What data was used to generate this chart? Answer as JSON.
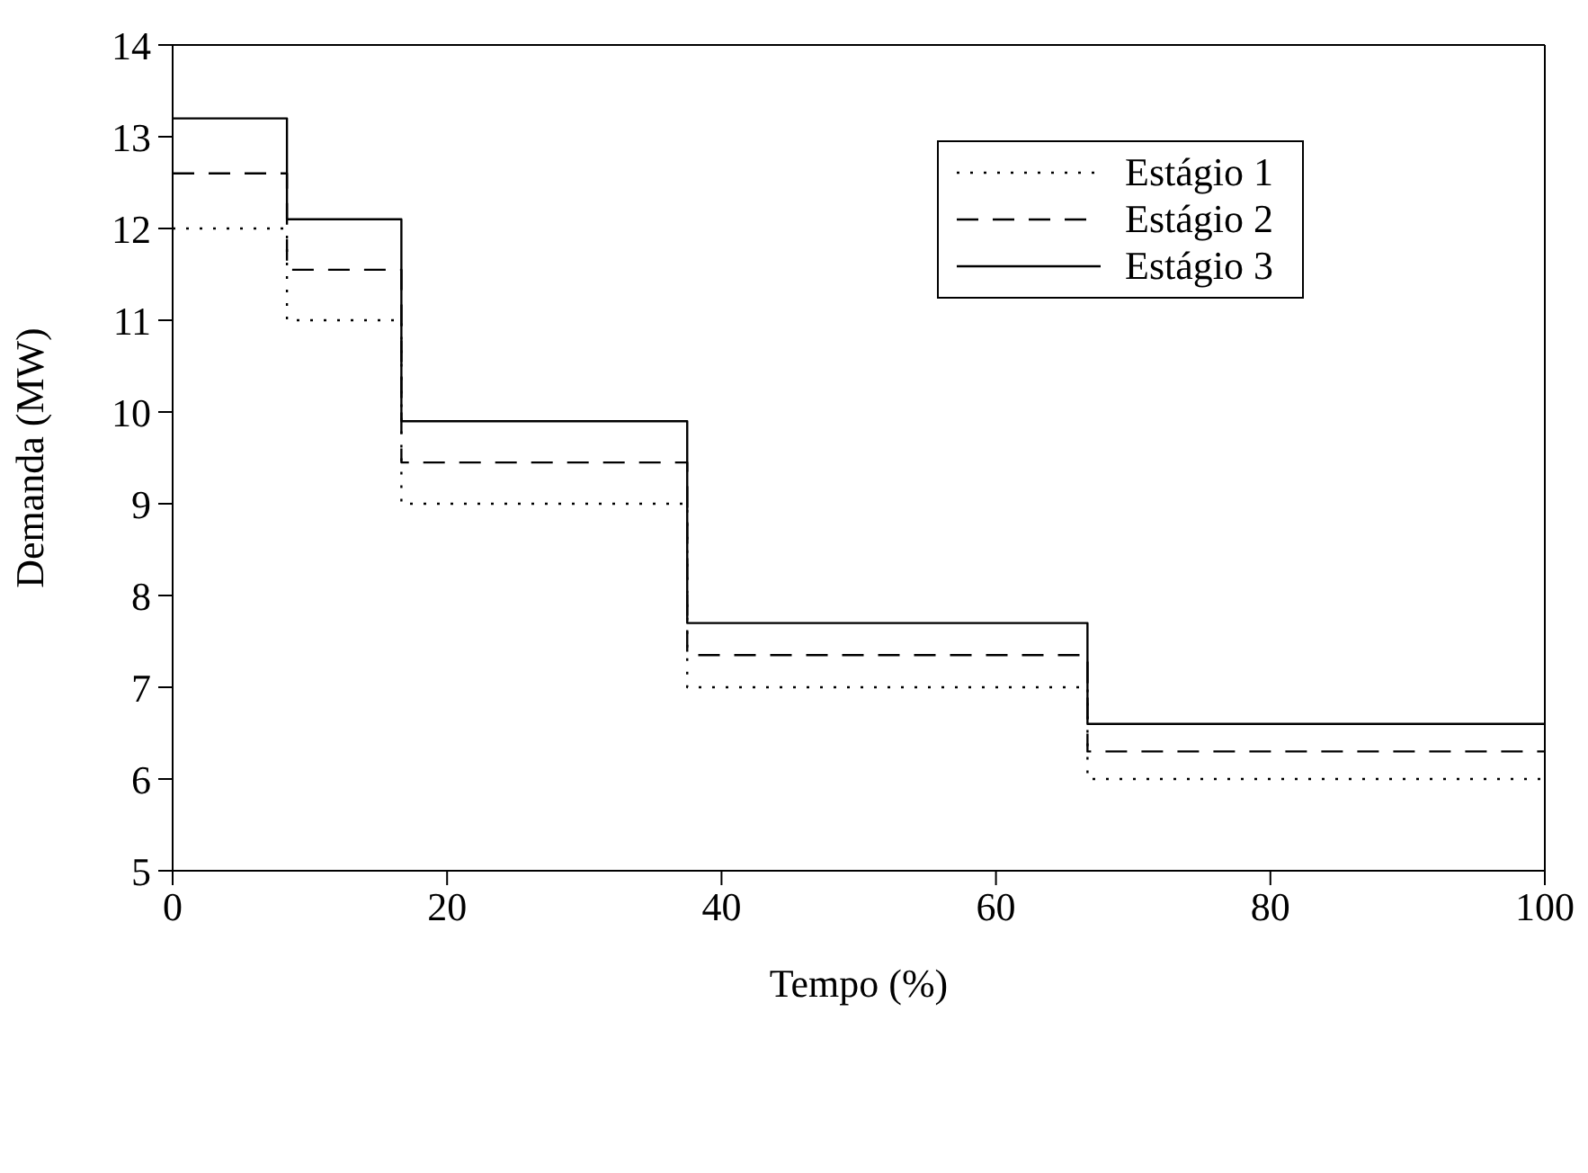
{
  "chart_data": {
    "type": "step",
    "xlabel": "Tempo (%)",
    "ylabel": "Demanda (MW)",
    "xlim": [
      0,
      100
    ],
    "xticks": [
      0,
      20,
      40,
      60,
      80,
      100
    ],
    "ylim": [
      5,
      14
    ],
    "yticks": [
      5,
      6,
      7,
      8,
      9,
      10,
      11,
      12,
      13,
      14
    ],
    "legend": "top right",
    "marker": "none",
    "series": [
      {
        "name": "Estágio 1",
        "color": "#000000",
        "line_style": "dotted",
        "x": [
          0,
          8.33,
          16.67,
          37.5,
          66.67,
          100
        ],
        "values": [
          12,
          11,
          9,
          7,
          6,
          6
        ]
      },
      {
        "name": "Estágio 2",
        "color": "#000000",
        "line_style": "dashed",
        "x": [
          0,
          8.33,
          16.67,
          37.5,
          66.67,
          100
        ],
        "values": [
          12.6,
          11.55,
          9.45,
          7.35,
          6.3,
          6.3
        ]
      },
      {
        "name": "Estágio 3",
        "color": "#000000",
        "line_style": "solid",
        "x": [
          0,
          8.33,
          16.67,
          37.5,
          66.67,
          100
        ],
        "values": [
          13.2,
          12.1,
          9.9,
          7.7,
          6.6,
          6.6
        ]
      }
    ]
  }
}
